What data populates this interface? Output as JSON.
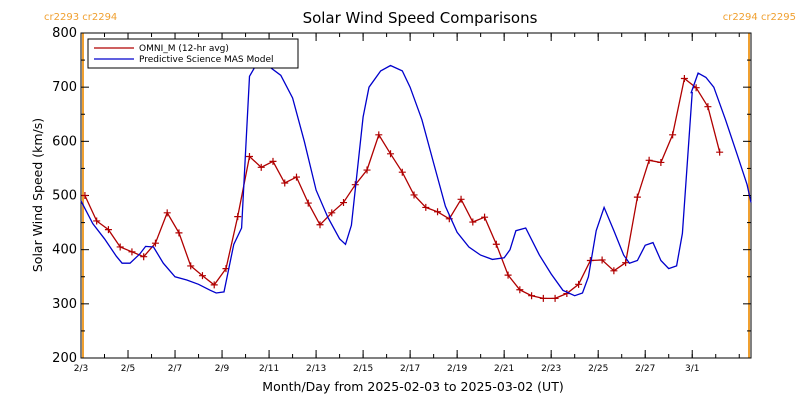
{
  "chart_data": {
    "type": "line",
    "title": "Solar Wind Speed Comparisons",
    "xlabel": "Month/Day from 2025-02-03 to 2025-03-02 (UT)",
    "ylabel": "Solar Wind Speed (km/s)",
    "xlim": [
      "2025-02-03T00:00",
      "2025-03-03T12:00"
    ],
    "ylim": [
      200,
      800
    ],
    "x_ticks": [
      "2025-02-03",
      "2025-02-05",
      "2025-02-07",
      "2025-02-09",
      "2025-02-11",
      "2025-02-13",
      "2025-02-15",
      "2025-02-17",
      "2025-02-19",
      "2025-02-21",
      "2025-02-23",
      "2025-02-25",
      "2025-02-27",
      "2025-03-01"
    ],
    "x_tick_labels": [
      "2/3",
      "2/5",
      "2/7",
      "2/9",
      "2/11",
      "2/13",
      "2/15",
      "2/17",
      "2/19",
      "2/21",
      "2/23",
      "2/25",
      "2/27",
      "3/1"
    ],
    "y_ticks": [
      200,
      300,
      400,
      500,
      600,
      700,
      800
    ],
    "y_tick_labels": [
      "200",
      "300",
      "400",
      "500",
      "600",
      "700",
      "800"
    ],
    "grid": false,
    "legend_position": "top-left",
    "rotation_markers": [
      {
        "label_left": "cr2293",
        "label_right": "cr2294",
        "x": "2025-02-03T00:00",
        "color": "#f0a030",
        "align": "left"
      },
      {
        "label_left": "cr2294",
        "label_right": "cr2295",
        "x": "2025-03-03T12:00",
        "color": "#f0a030",
        "align": "right"
      }
    ],
    "series": [
      {
        "name": "OMNI_M (12-hr avg)",
        "color": "#b00000",
        "marker": "plus",
        "points": [
          [
            "2025-02-03T04:00",
            500
          ],
          [
            "2025-02-03T16:00",
            453
          ],
          [
            "2025-02-04T04:00",
            437
          ],
          [
            "2025-02-04T16:00",
            405
          ],
          [
            "2025-02-05T04:00",
            396
          ],
          [
            "2025-02-05T16:00",
            387
          ],
          [
            "2025-02-06T04:00",
            412
          ],
          [
            "2025-02-06T16:00",
            468
          ],
          [
            "2025-02-07T04:00",
            431
          ],
          [
            "2025-02-07T16:00",
            370
          ],
          [
            "2025-02-08T04:00",
            352
          ],
          [
            "2025-02-08T16:00",
            335
          ],
          [
            "2025-02-09T04:00",
            365
          ],
          [
            "2025-02-09T16:00",
            461
          ],
          [
            "2025-02-10T04:00",
            572
          ],
          [
            "2025-02-10T16:00",
            552
          ],
          [
            "2025-02-11T04:00",
            563
          ],
          [
            "2025-02-11T16:00",
            523
          ],
          [
            "2025-02-12T04:00",
            534
          ],
          [
            "2025-02-12T16:00",
            486
          ],
          [
            "2025-02-13T04:00",
            446
          ],
          [
            "2025-02-13T16:00",
            468
          ],
          [
            "2025-02-14T04:00",
            487
          ],
          [
            "2025-02-14T16:00",
            520
          ],
          [
            "2025-02-15T04:00",
            547
          ],
          [
            "2025-02-15T16:00",
            612
          ],
          [
            "2025-02-16T04:00",
            577
          ],
          [
            "2025-02-16T16:00",
            543
          ],
          [
            "2025-02-17T04:00",
            501
          ],
          [
            "2025-02-17T16:00",
            478
          ],
          [
            "2025-02-18T04:00",
            470
          ],
          [
            "2025-02-18T16:00",
            457
          ],
          [
            "2025-02-19T04:00",
            493
          ],
          [
            "2025-02-19T16:00",
            451
          ],
          [
            "2025-02-20T04:00",
            460
          ],
          [
            "2025-02-20T16:00",
            410
          ],
          [
            "2025-02-21T04:00",
            353
          ],
          [
            "2025-02-21T16:00",
            326
          ],
          [
            "2025-02-22T04:00",
            315
          ],
          [
            "2025-02-22T16:00",
            310
          ],
          [
            "2025-02-23T04:00",
            310
          ],
          [
            "2025-02-23T16:00",
            319
          ],
          [
            "2025-02-24T04:00",
            336
          ],
          [
            "2025-02-24T16:00",
            380
          ],
          [
            "2025-02-25T04:00",
            381
          ],
          [
            "2025-02-25T16:00",
            361
          ],
          [
            "2025-02-26T04:00",
            376
          ],
          [
            "2025-02-26T16:00",
            497
          ],
          [
            "2025-02-27T04:00",
            565
          ],
          [
            "2025-02-27T16:00",
            561
          ],
          [
            "2025-02-28T04:00",
            612
          ],
          [
            "2025-02-28T16:00",
            716
          ],
          [
            "2025-03-01T04:00",
            699
          ],
          [
            "2025-03-01T16:00",
            664
          ],
          [
            "2025-03-02T04:00",
            580
          ]
        ]
      },
      {
        "name": "Predictive Science MAS Model",
        "color": "#0000cc",
        "marker": "none",
        "points": [
          [
            "2025-02-03T00:00",
            490
          ],
          [
            "2025-02-03T12:00",
            448
          ],
          [
            "2025-02-04T00:00",
            420
          ],
          [
            "2025-02-04T12:00",
            388
          ],
          [
            "2025-02-04T18:00",
            375
          ],
          [
            "2025-02-05T02:00",
            375
          ],
          [
            "2025-02-05T12:00",
            392
          ],
          [
            "2025-02-05T18:00",
            406
          ],
          [
            "2025-02-06T02:00",
            405
          ],
          [
            "2025-02-06T12:00",
            375
          ],
          [
            "2025-02-07T00:00",
            350
          ],
          [
            "2025-02-07T12:00",
            344
          ],
          [
            "2025-02-08T00:00",
            336
          ],
          [
            "2025-02-08T12:00",
            325
          ],
          [
            "2025-02-08T18:00",
            320
          ],
          [
            "2025-02-09T02:00",
            322
          ],
          [
            "2025-02-09T12:00",
            410
          ],
          [
            "2025-02-09T20:00",
            440
          ],
          [
            "2025-02-10T04:00",
            720
          ],
          [
            "2025-02-10T12:00",
            745
          ],
          [
            "2025-02-11T00:00",
            738
          ],
          [
            "2025-02-11T12:00",
            722
          ],
          [
            "2025-02-12T00:00",
            680
          ],
          [
            "2025-02-12T12:00",
            600
          ],
          [
            "2025-02-13T00:00",
            510
          ],
          [
            "2025-02-13T12:00",
            460
          ],
          [
            "2025-02-14T00:00",
            420
          ],
          [
            "2025-02-14T06:00",
            410
          ],
          [
            "2025-02-14T12:00",
            445
          ],
          [
            "2025-02-15T00:00",
            645
          ],
          [
            "2025-02-15T06:00",
            700
          ],
          [
            "2025-02-15T18:00",
            730
          ],
          [
            "2025-02-16T04:00",
            740
          ],
          [
            "2025-02-16T16:00",
            730
          ],
          [
            "2025-02-17T00:00",
            700
          ],
          [
            "2025-02-17T12:00",
            640
          ],
          [
            "2025-02-18T00:00",
            560
          ],
          [
            "2025-02-18T12:00",
            480
          ],
          [
            "2025-02-19T00:00",
            432
          ],
          [
            "2025-02-19T12:00",
            405
          ],
          [
            "2025-02-20T00:00",
            390
          ],
          [
            "2025-02-20T12:00",
            382
          ],
          [
            "2025-02-21T00:00",
            385
          ],
          [
            "2025-02-21T06:00",
            400
          ],
          [
            "2025-02-21T12:00",
            435
          ],
          [
            "2025-02-21T22:00",
            440
          ],
          [
            "2025-02-22T12:00",
            390
          ],
          [
            "2025-02-23T00:00",
            355
          ],
          [
            "2025-02-23T12:00",
            325
          ],
          [
            "2025-02-24T00:00",
            315
          ],
          [
            "2025-02-24T08:00",
            320
          ],
          [
            "2025-02-24T14:00",
            350
          ],
          [
            "2025-02-24T22:00",
            435
          ],
          [
            "2025-02-25T06:00",
            478
          ],
          [
            "2025-02-25T16:00",
            435
          ],
          [
            "2025-02-26T02:00",
            390
          ],
          [
            "2025-02-26T08:00",
            375
          ],
          [
            "2025-02-26T16:00",
            380
          ],
          [
            "2025-02-27T00:00",
            408
          ],
          [
            "2025-02-27T08:00",
            413
          ],
          [
            "2025-02-27T16:00",
            380
          ],
          [
            "2025-02-28T00:00",
            365
          ],
          [
            "2025-02-28T08:00",
            370
          ],
          [
            "2025-02-28T14:00",
            430
          ],
          [
            "2025-02-29T00:00",
            690
          ],
          [
            "2025-02-28T23:00",
            690
          ],
          [
            "2025-03-01T06:00",
            726
          ],
          [
            "2025-03-01T14:00",
            718
          ],
          [
            "2025-03-01T22:00",
            700
          ],
          [
            "2025-03-02T10:00",
            640
          ],
          [
            "2025-03-02T22:00",
            575
          ],
          [
            "2025-03-03T08:00",
            520
          ],
          [
            "2025-03-03T12:00",
            487
          ]
        ]
      }
    ]
  }
}
